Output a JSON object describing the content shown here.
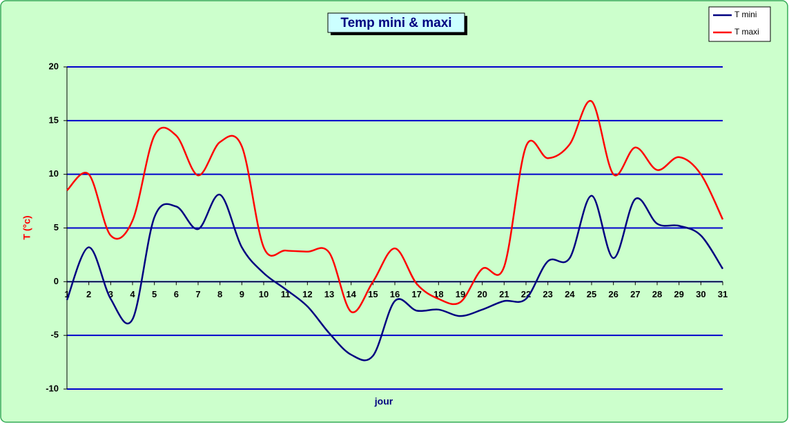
{
  "chart_data": {
    "type": "line",
    "title": "Temp mini & maxi",
    "x_label": "jour",
    "y_label": "T (°c)",
    "x": [
      1,
      2,
      3,
      4,
      5,
      6,
      7,
      8,
      9,
      10,
      11,
      12,
      13,
      14,
      15,
      16,
      17,
      18,
      19,
      20,
      21,
      22,
      23,
      24,
      25,
      26,
      27,
      28,
      29,
      30,
      31
    ],
    "xlim": [
      1,
      31
    ],
    "ylim": [
      -10,
      20
    ],
    "yticks": [
      20,
      15,
      10,
      5,
      0,
      -5,
      -10
    ],
    "grid": true,
    "smooth": true,
    "legend": "top-right",
    "series": [
      {
        "name": "T mini",
        "color": "#000080",
        "values": [
          -1.7,
          3.2,
          -1.6,
          -3.5,
          6.0,
          7.0,
          4.9,
          8.1,
          3.2,
          0.8,
          -0.7,
          -2.3,
          -4.8,
          -6.8,
          -6.9,
          -1.8,
          -2.7,
          -2.6,
          -3.2,
          -2.6,
          -1.8,
          -1.6,
          1.9,
          2.2,
          8.0,
          2.2,
          7.7,
          5.4,
          5.2,
          4.3,
          1.2
        ]
      },
      {
        "name": "T maxi",
        "color": "#ff0000",
        "values": [
          8.5,
          10.0,
          4.3,
          5.7,
          13.6,
          13.6,
          9.9,
          13.0,
          12.6,
          3.2,
          2.9,
          2.8,
          2.7,
          -2.8,
          0.0,
          3.1,
          -0.2,
          -1.6,
          -1.9,
          1.2,
          1.4,
          12.6,
          11.5,
          12.8,
          16.8,
          10.0,
          12.5,
          10.4,
          11.6,
          10.0,
          5.8
        ]
      }
    ]
  }
}
